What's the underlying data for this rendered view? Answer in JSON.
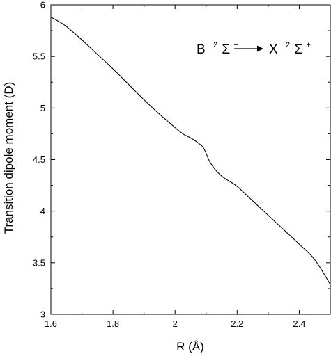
{
  "chart_data": {
    "type": "line",
    "xlabel": "R (Å)",
    "ylabel": "Transition dipole moment (D)",
    "xlim": [
      1.6,
      2.5
    ],
    "ylim": [
      3,
      6
    ],
    "x_ticks": [
      1.6,
      1.8,
      2.0,
      2.2,
      2.4
    ],
    "x_tick_labels": [
      "1.6",
      "1.8",
      "2",
      "2.2",
      "2.4"
    ],
    "y_ticks": [
      3,
      3.5,
      4,
      4.5,
      5,
      5.5,
      6
    ],
    "y_tick_labels": [
      "3",
      "3.5",
      "4",
      "4.5",
      "5",
      "5.5",
      "6"
    ],
    "grid": false,
    "annotation": {
      "from_state": "B",
      "from_sup": "2",
      "from_term": "Σ",
      "from_term_sup": "+",
      "to_state": "X",
      "to_sup": "2",
      "to_term": "Σ",
      "to_term_sup": "+"
    },
    "series": [
      {
        "x": [
          1.6,
          1.625,
          1.65,
          1.7,
          1.75,
          1.8,
          1.85,
          1.9,
          1.95,
          2.0,
          2.025,
          2.05,
          2.075,
          2.09,
          2.1,
          2.11,
          2.125,
          2.15,
          2.175,
          2.2,
          2.25,
          2.3,
          2.35,
          2.4,
          2.45,
          2.5
        ],
        "y": [
          5.88,
          5.84,
          5.79,
          5.66,
          5.52,
          5.38,
          5.23,
          5.08,
          4.94,
          4.81,
          4.75,
          4.71,
          4.66,
          4.62,
          4.56,
          4.49,
          4.42,
          4.34,
          4.29,
          4.24,
          4.1,
          3.96,
          3.82,
          3.68,
          3.53,
          3.29
        ]
      }
    ]
  },
  "colors": {
    "line": "#000000",
    "background": "#ffffff"
  }
}
